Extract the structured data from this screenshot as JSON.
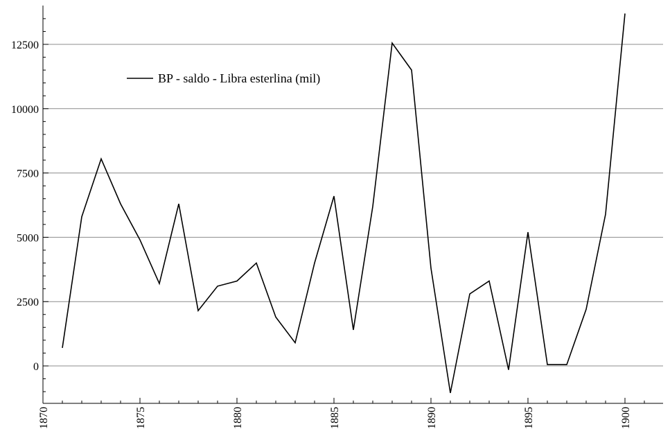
{
  "chart_data": {
    "type": "line",
    "title": "",
    "xlabel": "",
    "ylabel": "",
    "xlim": [
      1870,
      1902
    ],
    "ylim": [
      -1400,
      14000
    ],
    "grid": "horizontal",
    "legend_position": "top-left",
    "x_ticks": [
      1870,
      1875,
      1880,
      1885,
      1890,
      1895,
      1900
    ],
    "y_ticks": [
      0,
      2500,
      5000,
      7500,
      10000,
      12500
    ],
    "x_tick_labels": [
      "1870",
      "1875",
      "1880",
      "1885",
      "1890",
      "1895",
      "1900"
    ],
    "y_tick_labels": [
      "0",
      "2500",
      "5000",
      "7500",
      "10000",
      "12500"
    ],
    "series": [
      {
        "name": "BP - saldo - Libra esterlina (mil)",
        "color": "#000000",
        "x": [
          1871,
          1872,
          1873,
          1874,
          1875,
          1876,
          1877,
          1878,
          1879,
          1880,
          1881,
          1882,
          1883,
          1884,
          1885,
          1886,
          1887,
          1888,
          1889,
          1890,
          1891,
          1892,
          1893,
          1894,
          1895,
          1896,
          1897,
          1898,
          1899,
          1900
        ],
        "y": [
          700,
          5800,
          8050,
          6300,
          4900,
          3200,
          6300,
          2150,
          3100,
          3300,
          4000,
          1900,
          900,
          4000,
          6600,
          1400,
          6200,
          12550,
          11500,
          3800,
          -1050,
          2800,
          3300,
          -150,
          5200,
          50,
          50,
          2200,
          5900,
          13700
        ]
      }
    ]
  }
}
